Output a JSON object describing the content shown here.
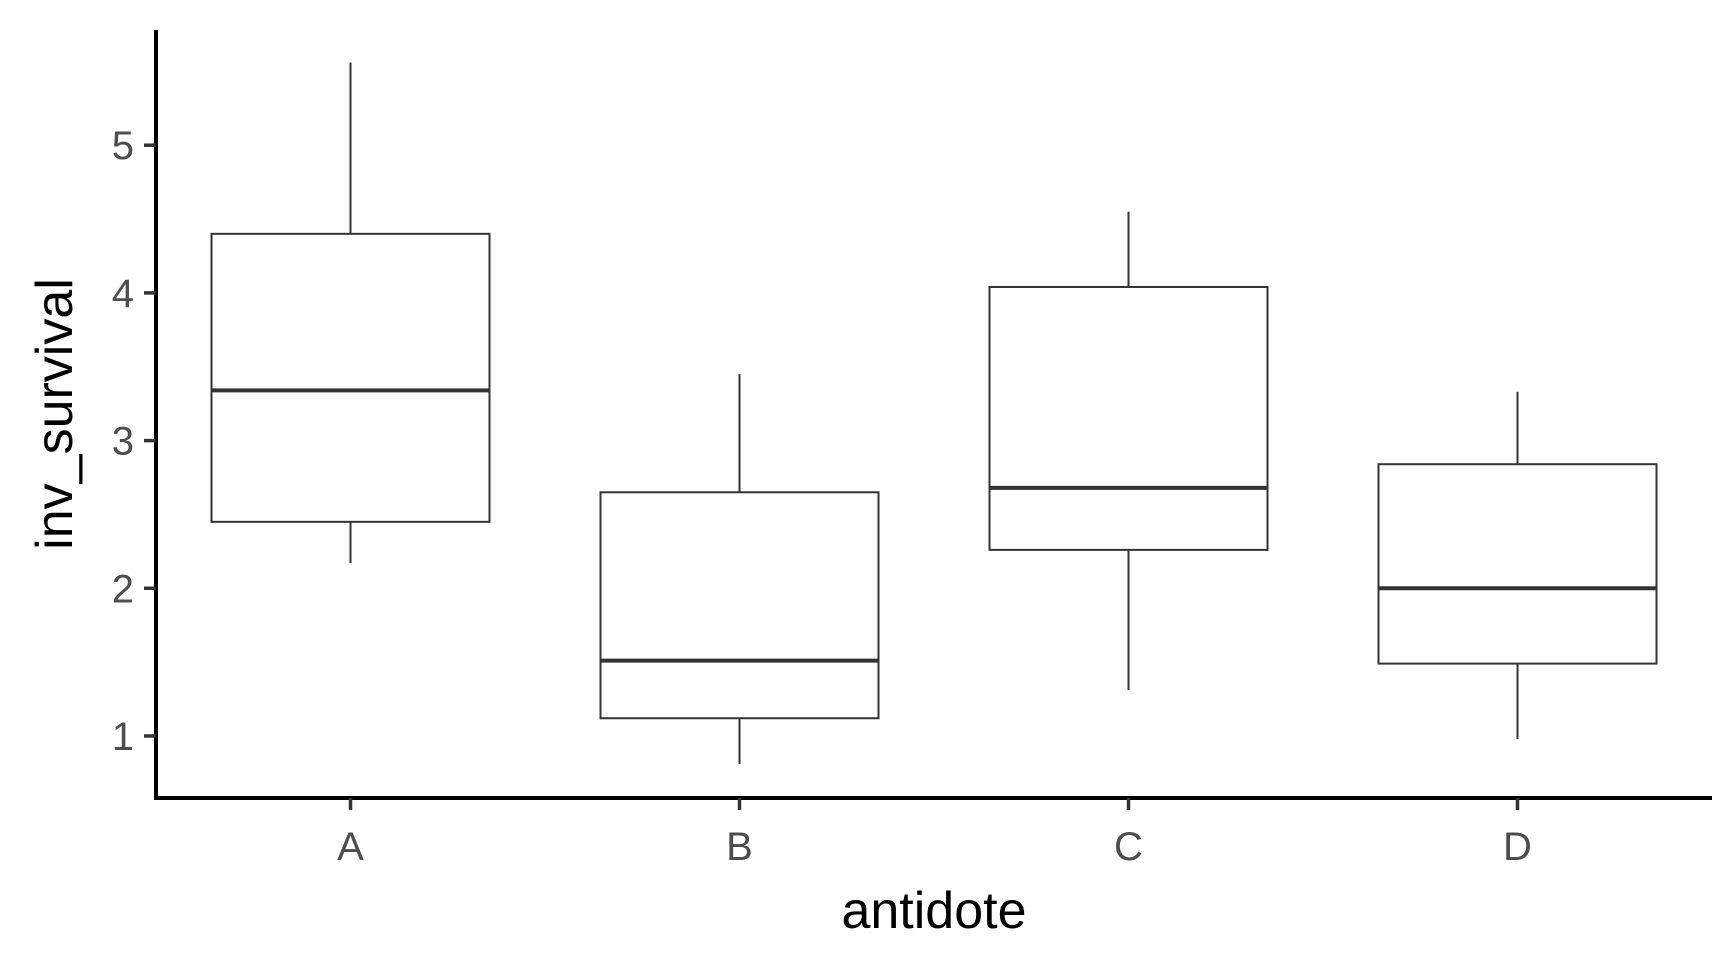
{
  "chart_data": {
    "type": "boxplot",
    "title": "",
    "xlabel": "antidote",
    "ylabel": "inv_survival",
    "ylim": [
      0.58,
      5.78
    ],
    "yticks": [
      1,
      2,
      3,
      4,
      5
    ],
    "grid": false,
    "legend": "none",
    "colors": {
      "box_fill": "#ffffff",
      "box_stroke": "#333333",
      "axis": "#000000",
      "tick_label": "#4d4d4d"
    },
    "categories": [
      "A",
      "B",
      "C",
      "D"
    ],
    "boxes": [
      {
        "category": "A",
        "lower_whisker": 2.17,
        "q1": 2.45,
        "median": 3.34,
        "q3": 4.4,
        "upper_whisker": 5.56
      },
      {
        "category": "B",
        "lower_whisker": 0.81,
        "q1": 1.12,
        "median": 1.51,
        "q3": 2.65,
        "upper_whisker": 3.45
      },
      {
        "category": "C",
        "lower_whisker": 1.31,
        "q1": 2.26,
        "median": 2.68,
        "q3": 4.04,
        "upper_whisker": 4.55
      },
      {
        "category": "D",
        "lower_whisker": 0.98,
        "q1": 1.49,
        "median": 2.0,
        "q3": 2.84,
        "upper_whisker": 3.33
      }
    ]
  }
}
